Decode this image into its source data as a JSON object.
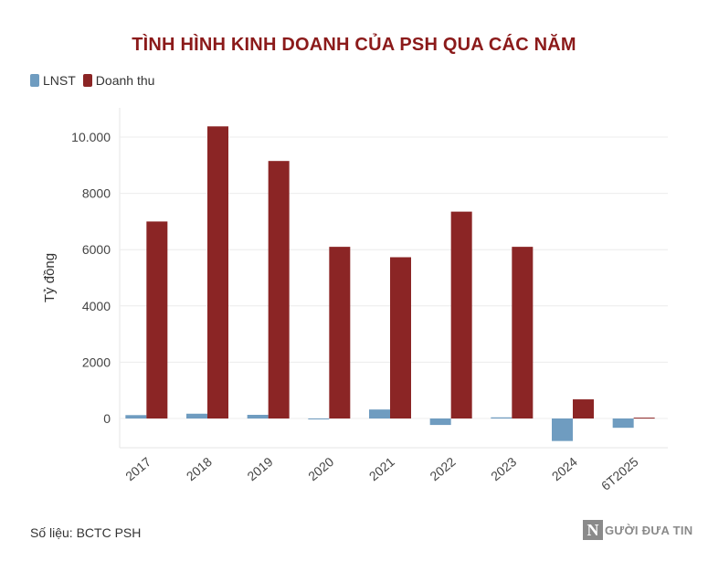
{
  "chart_data": {
    "type": "bar",
    "title": "TÌNH HÌNH KINH DOANH CỦA PSH QUA CÁC NĂM",
    "ylabel": "Tỷ đồng",
    "xlabel": "",
    "categories": [
      "2017",
      "2018",
      "2019",
      "2020",
      "2021",
      "2022",
      "2023",
      "2024",
      "6T2025"
    ],
    "series": [
      {
        "name": "LNST",
        "color": "#6f9cc0",
        "values": [
          120,
          170,
          130,
          -25,
          320,
          -230,
          40,
          -800,
          -330
        ]
      },
      {
        "name": "Doanh thu",
        "color": "#8b2525",
        "values": [
          7000,
          10380,
          9150,
          6100,
          5730,
          7350,
          6100,
          680,
          30
        ]
      }
    ],
    "yticks": [
      0,
      2000,
      4000,
      6000,
      8000,
      10000
    ],
    "ytick_labels": [
      "0",
      "2000",
      "4000",
      "6000",
      "8000",
      "10.000"
    ],
    "ylim": [
      -1000,
      11000
    ],
    "grid": true,
    "legend_position": "top-left"
  },
  "source_text": "Số liệu: BCTC PSH",
  "logo": {
    "initial": "N",
    "text": "GƯỜI ĐƯA TIN"
  }
}
